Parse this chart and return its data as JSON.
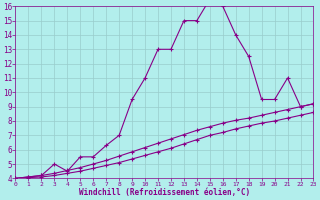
{
  "xlabel": "Windchill (Refroidissement éolien,°C)",
  "background_color": "#b2eeec",
  "line_color": "#880088",
  "grid_color": "#99cccc",
  "xlim": [
    0,
    23
  ],
  "ylim": [
    4,
    16
  ],
  "xticks": [
    0,
    1,
    2,
    3,
    4,
    5,
    6,
    7,
    8,
    9,
    10,
    11,
    12,
    13,
    14,
    15,
    16,
    17,
    18,
    19,
    20,
    21,
    22,
    23
  ],
  "yticks": [
    4,
    5,
    6,
    7,
    8,
    9,
    10,
    11,
    12,
    13,
    14,
    15,
    16
  ],
  "line1_x": [
    0,
    1,
    2,
    3,
    4,
    5,
    6,
    7,
    8,
    9,
    10,
    11,
    12,
    13,
    14,
    15,
    16,
    17,
    18,
    19,
    20,
    21,
    22,
    23
  ],
  "line1_y": [
    4.0,
    4.05,
    4.1,
    4.2,
    4.35,
    4.5,
    4.7,
    4.9,
    5.1,
    5.35,
    5.6,
    5.85,
    6.1,
    6.4,
    6.7,
    7.0,
    7.2,
    7.45,
    7.65,
    7.85,
    8.0,
    8.2,
    8.4,
    8.6
  ],
  "line2_x": [
    0,
    1,
    2,
    3,
    4,
    5,
    6,
    7,
    8,
    9,
    10,
    11,
    12,
    13,
    14,
    15,
    16,
    17,
    18,
    19,
    20,
    21,
    22,
    23
  ],
  "line2_y": [
    4.0,
    4.1,
    4.2,
    4.35,
    4.55,
    4.75,
    5.0,
    5.25,
    5.55,
    5.85,
    6.15,
    6.45,
    6.75,
    7.05,
    7.35,
    7.6,
    7.85,
    8.05,
    8.2,
    8.4,
    8.6,
    8.8,
    9.0,
    9.2
  ],
  "line3_x": [
    0,
    1,
    2,
    3,
    4,
    5,
    6,
    7,
    8,
    9,
    10,
    11,
    12,
    13,
    14,
    15,
    16,
    17,
    18,
    19,
    20,
    21,
    22,
    23
  ],
  "line3_y": [
    4.0,
    4.1,
    4.2,
    5.0,
    4.5,
    5.5,
    5.5,
    6.3,
    7.0,
    9.5,
    11.0,
    13.0,
    13.0,
    15.0,
    15.0,
    16.5,
    16.0,
    14.0,
    12.5,
    9.5,
    9.5,
    11.0,
    9.0,
    9.2
  ]
}
